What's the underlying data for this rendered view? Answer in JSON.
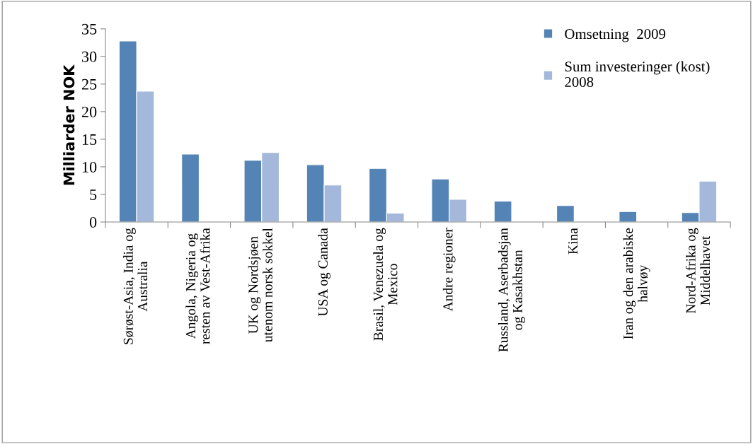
{
  "chart_data": {
    "type": "bar",
    "ylabel": "Milliarder NOK",
    "categories": [
      "Sørøst-Asia, India og\nAustralia",
      "Angola, Nigeria og\nresten av Vest-Afrika",
      "UK og Nordsjøen\nutenom norsk sokkel",
      "USA og Canada",
      "Brasil, Venezuela og\nMexico",
      "Andre regioner",
      "Russland, Aserbadsjan\nog Kasakhstan",
      "Kina",
      "Iran og den arabiske\nhalvøy",
      "Nord-Afrika og\nMiddelhavet"
    ],
    "series": [
      {
        "name": "Omsetning  2009",
        "color": "#5484b5",
        "values": [
          32.8,
          12.3,
          11.2,
          10.4,
          9.7,
          7.8,
          3.8,
          3.0,
          1.9,
          1.7
        ]
      },
      {
        "name": "Sum investeringer (kost)\n2008",
        "color": "#a3b8da",
        "values": [
          23.7,
          null,
          12.6,
          6.7,
          1.6,
          4.1,
          null,
          null,
          null,
          7.4
        ]
      }
    ],
    "ylim": [
      0,
      35
    ],
    "yticks": [
      0,
      5,
      10,
      15,
      20,
      25,
      30,
      35
    ],
    "grid": false,
    "legend": "top right"
  }
}
